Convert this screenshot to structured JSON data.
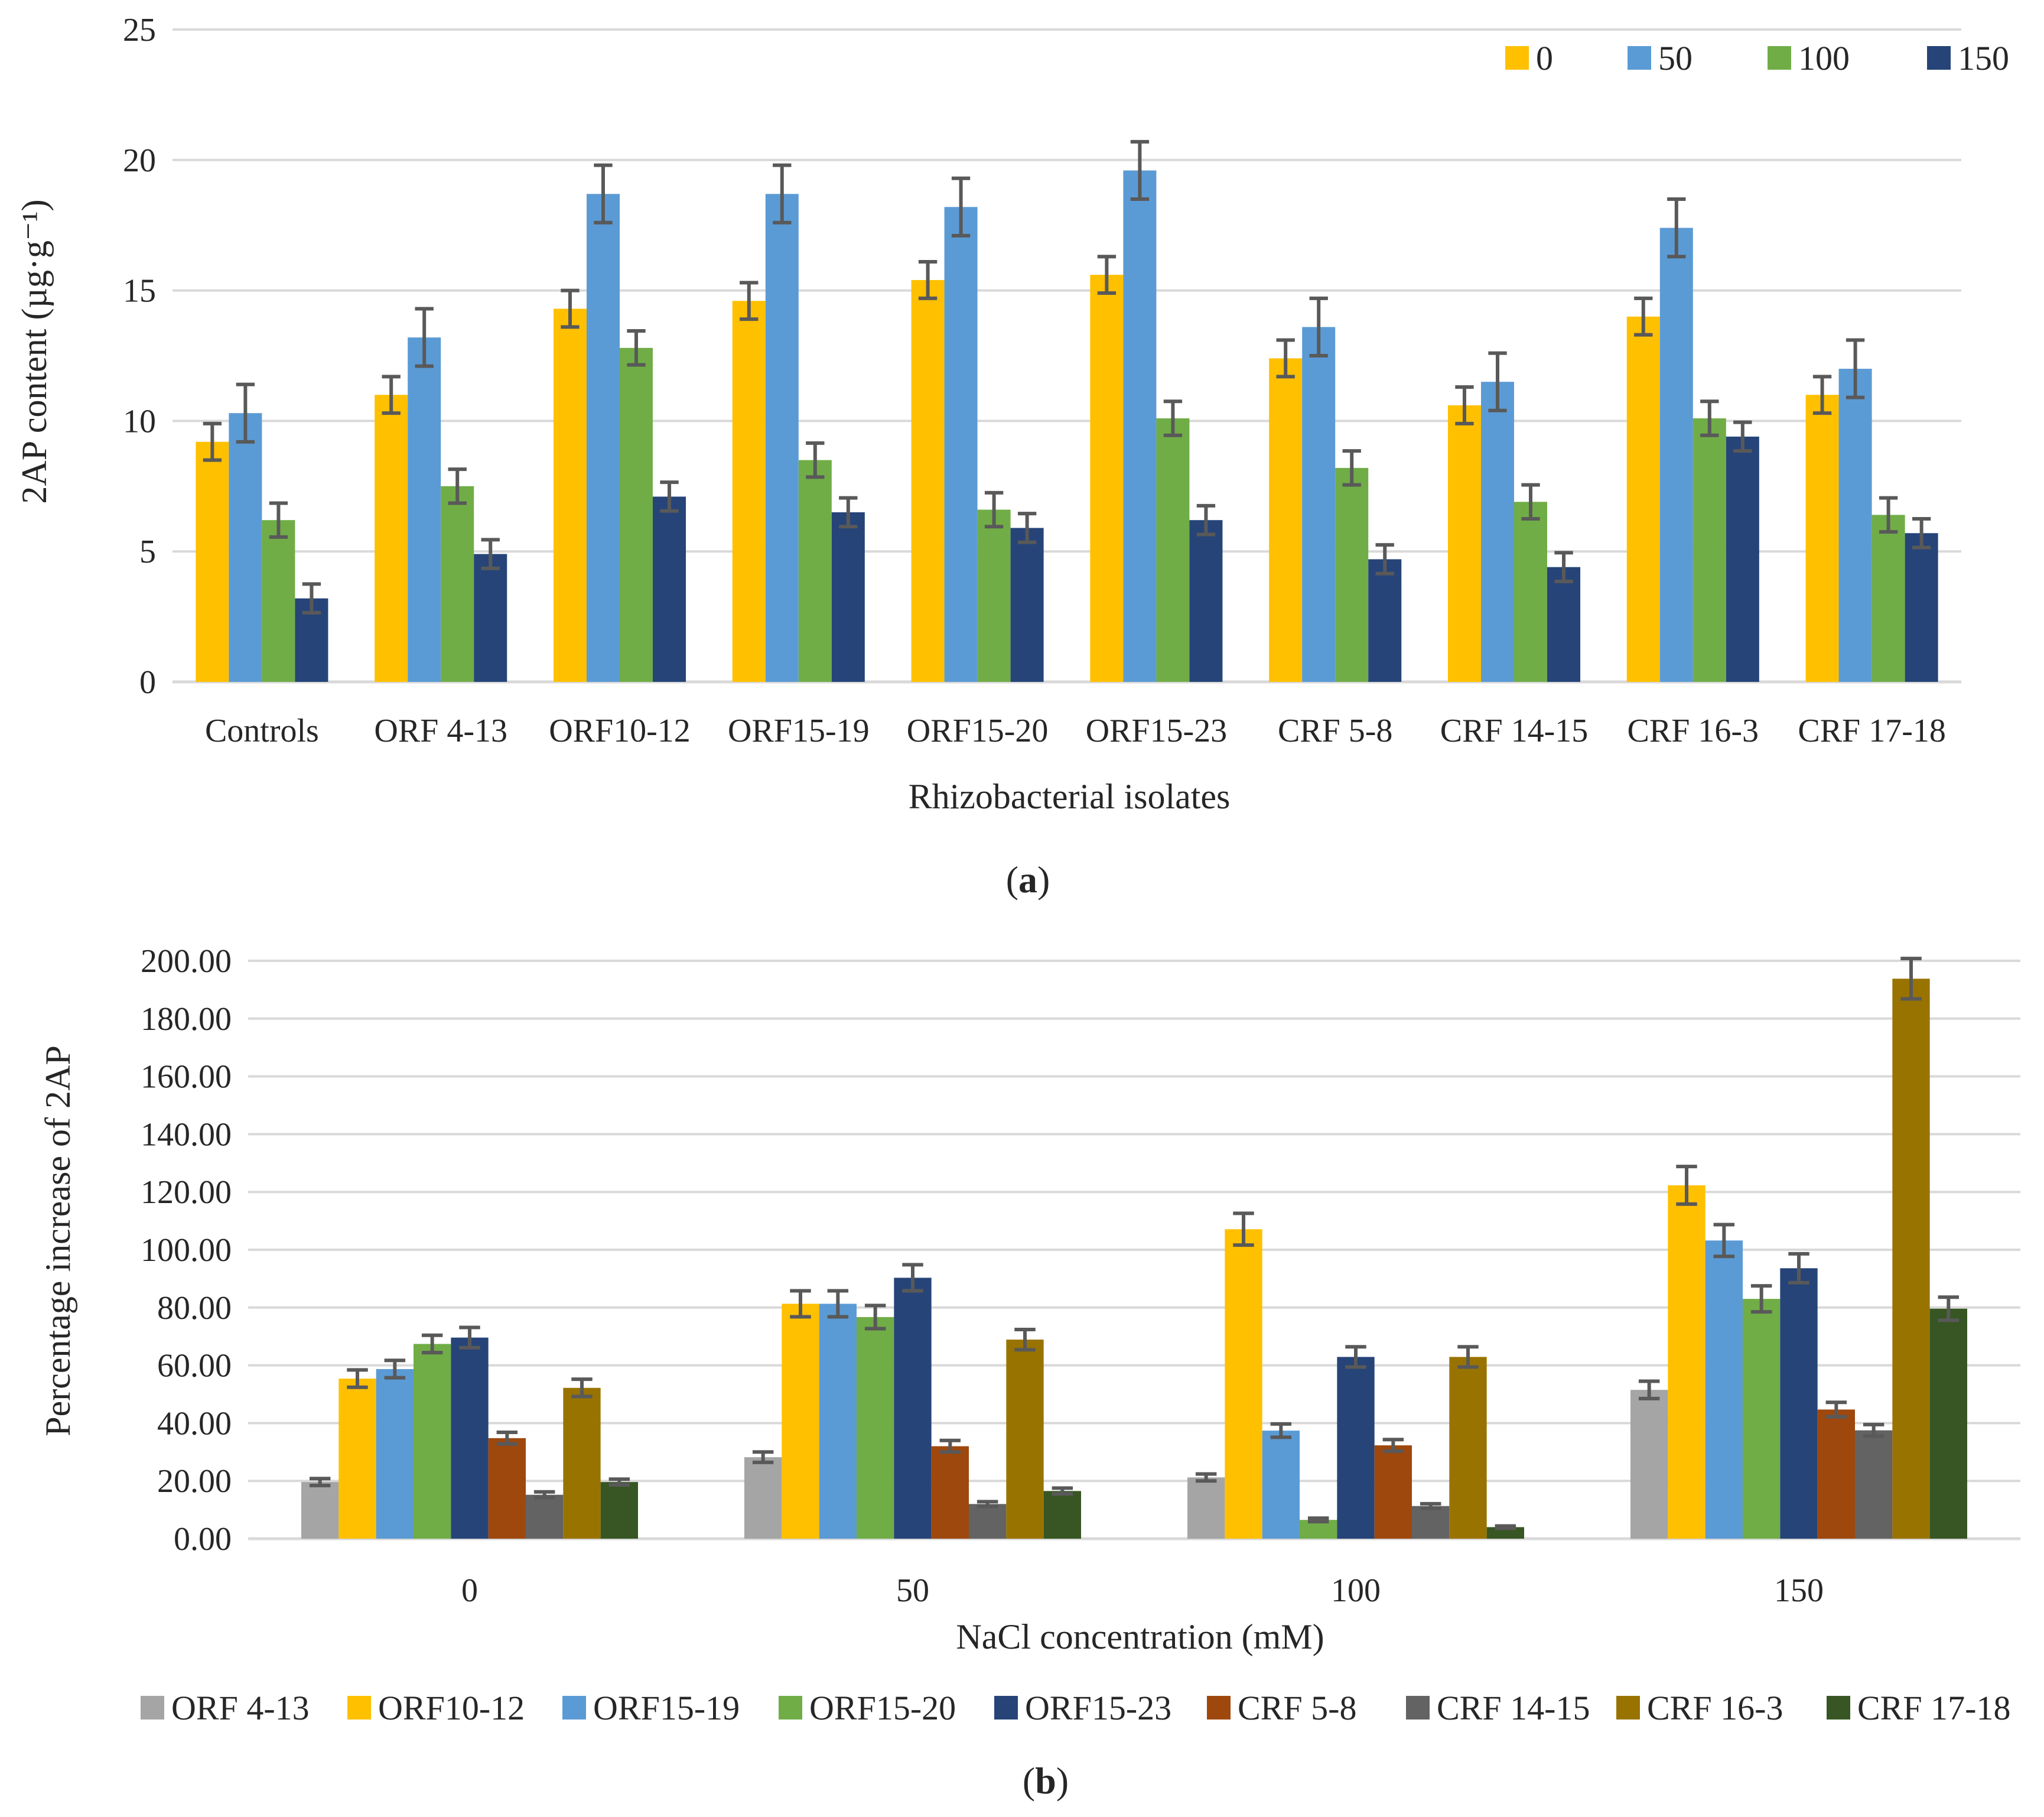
{
  "chart_data": [
    {
      "type": "bar",
      "panel_label": "(a)",
      "panel_letter": "a",
      "xlabel": "Rhizobacterial isolates",
      "ylabel": "2AP content (µg·g⁻¹)",
      "ylim": [
        0,
        25
      ],
      "yticks": [
        "0",
        "5",
        "10",
        "15",
        "20",
        "25"
      ],
      "grid": true,
      "legend_position": "top-right",
      "categories": [
        "Controls",
        "ORF 4-13",
        "ORF10-12",
        "ORF15-19",
        "ORF15-20",
        "ORF15-23",
        "CRF 5-8",
        "CRF 14-15",
        "CRF 16-3",
        "CRF 17-18"
      ],
      "series": [
        {
          "name": "0",
          "color": "#FFC000",
          "values": [
            9.2,
            11.0,
            14.3,
            14.6,
            15.4,
            15.6,
            12.4,
            10.6,
            14.0,
            11.0
          ],
          "errors": [
            0.7,
            0.7,
            0.7,
            0.7,
            0.7,
            0.7,
            0.7,
            0.7,
            0.7,
            0.7
          ]
        },
        {
          "name": "50",
          "color": "#5B9BD5",
          "values": [
            10.3,
            13.2,
            18.7,
            18.7,
            18.2,
            19.6,
            13.6,
            11.5,
            17.4,
            12.0
          ],
          "errors": [
            1.1,
            1.1,
            1.1,
            1.1,
            1.1,
            1.1,
            1.1,
            1.1,
            1.1,
            1.1
          ]
        },
        {
          "name": "100",
          "color": "#70AD47",
          "values": [
            6.2,
            7.5,
            12.8,
            8.5,
            6.6,
            10.1,
            8.2,
            6.9,
            10.1,
            6.4
          ],
          "errors": [
            0.65,
            0.65,
            0.65,
            0.65,
            0.65,
            0.65,
            0.65,
            0.65,
            0.65,
            0.65
          ]
        },
        {
          "name": "150",
          "color": "#264478",
          "values": [
            3.2,
            4.9,
            7.1,
            6.5,
            5.9,
            6.2,
            4.7,
            4.4,
            9.4,
            5.7
          ],
          "errors": [
            0.55,
            0.55,
            0.55,
            0.55,
            0.55,
            0.55,
            0.55,
            0.55,
            0.55,
            0.55
          ]
        }
      ]
    },
    {
      "type": "bar",
      "panel_label": "(b)",
      "panel_letter": "b",
      "xlabel": "NaCl concentration (mM)",
      "ylabel": "Percentage increase of 2AP",
      "ylim": [
        0,
        200
      ],
      "yticks": [
        "0.00",
        "20.00",
        "40.00",
        "60.00",
        "80.00",
        "100.00",
        "120.00",
        "140.00",
        "160.00",
        "180.00",
        "200.00"
      ],
      "grid": true,
      "legend_position": "bottom",
      "categories": [
        "0",
        "50",
        "100",
        "150"
      ],
      "series": [
        {
          "name": "ORF 4-13",
          "color": "#A5A5A5",
          "values": [
            19.6,
            28.2,
            21.2,
            51.5
          ],
          "errors": [
            1.2,
            1.8,
            1.2,
            3.0
          ]
        },
        {
          "name": "ORF10-12",
          "color": "#FFC000",
          "values": [
            55.4,
            81.3,
            107.1,
            122.3
          ],
          "errors": [
            3.0,
            4.5,
            5.5,
            6.5
          ]
        },
        {
          "name": "ORF15-19",
          "color": "#5B9BD5",
          "values": [
            58.7,
            81.3,
            37.4,
            103.2
          ],
          "errors": [
            3.0,
            4.5,
            2.3,
            5.5
          ]
        },
        {
          "name": "ORF15-20",
          "color": "#70AD47",
          "values": [
            67.4,
            76.7,
            6.5,
            83.0
          ],
          "errors": [
            3.0,
            4.0,
            0.6,
            4.5
          ]
        },
        {
          "name": "ORF15-23",
          "color": "#264478",
          "values": [
            69.6,
            90.3,
            62.9,
            93.6
          ],
          "errors": [
            3.5,
            4.5,
            3.5,
            5.0
          ]
        },
        {
          "name": "CRF 5-8",
          "color": "#9E480E",
          "values": [
            34.8,
            32.0,
            32.3,
            44.7
          ],
          "errors": [
            2.0,
            2.0,
            2.0,
            2.5
          ]
        },
        {
          "name": "CRF 14-15",
          "color": "#636363",
          "values": [
            15.2,
            12.0,
            11.3,
            37.5
          ],
          "errors": [
            1.0,
            0.8,
            0.8,
            2.0
          ]
        },
        {
          "name": "CRF 16-3",
          "color": "#997300",
          "values": [
            52.2,
            68.9,
            62.9,
            193.8
          ],
          "errors": [
            3.0,
            3.5,
            3.5,
            7.0
          ]
        },
        {
          "name": "CRF 17-18",
          "color": "#375623",
          "values": [
            19.6,
            16.5,
            4.0,
            79.6
          ],
          "errors": [
            1.0,
            1.0,
            0.4,
            4.0
          ]
        }
      ]
    }
  ]
}
